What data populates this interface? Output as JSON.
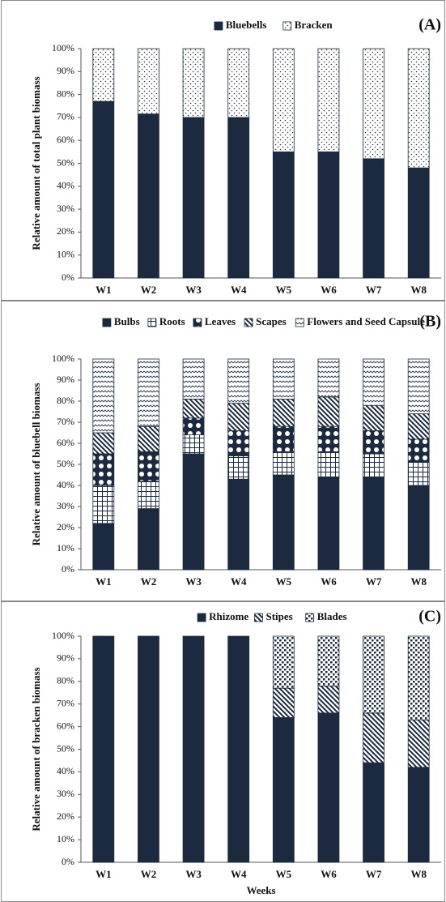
{
  "chart_data": [
    {
      "type": "stacked_bar",
      "panel_label": "(A)",
      "ylabel": "Relative amount of total plant biomass",
      "categories": [
        "W1",
        "W2",
        "W3",
        "W4",
        "W5",
        "W6",
        "W7",
        "W8"
      ],
      "series": [
        {
          "name": "Bluebells",
          "color": "#1b2a3e",
          "pattern": "solid",
          "values": [
            77,
            71.5,
            70,
            70,
            55,
            55,
            52,
            48
          ]
        },
        {
          "name": "Bracken",
          "color": "#ffffff",
          "pattern": "dots",
          "values": [
            23,
            28.5,
            30,
            30,
            45,
            45,
            48,
            52
          ]
        }
      ],
      "ylim": [
        0,
        100
      ],
      "yticks": [
        {
          "value": 0,
          "label": "0%"
        },
        {
          "value": 10,
          "label": "10%"
        },
        {
          "value": 20,
          "label": "20%"
        },
        {
          "value": 30,
          "label": "30%"
        },
        {
          "value": 40,
          "label": "40%"
        },
        {
          "value": 50,
          "label": "50%"
        },
        {
          "value": 60,
          "label": "60%"
        },
        {
          "value": 70,
          "label": "70%"
        },
        {
          "value": 80,
          "label": "80%"
        },
        {
          "value": 90,
          "label": "90%"
        },
        {
          "value": 100,
          "label": "100%"
        }
      ]
    },
    {
      "type": "stacked_bar",
      "panel_label": "(B)",
      "ylabel": "Relative amount of  bluebell biomass",
      "categories": [
        "W1",
        "W2",
        "W3",
        "W4",
        "W5",
        "W6",
        "W7",
        "W8"
      ],
      "series": [
        {
          "name": "Bulbs",
          "color": "#1b2a3e",
          "pattern": "solid",
          "values": [
            22,
            29,
            55,
            43,
            45,
            44,
            44,
            40
          ]
        },
        {
          "name": "Roots",
          "color": "#ffffff",
          "pattern": "grid",
          "values": [
            18,
            13,
            9,
            11,
            11,
            12,
            11,
            11
          ]
        },
        {
          "name": "Leaves",
          "color": "#ffffff",
          "pattern": "circles",
          "values": [
            15,
            14,
            8,
            12,
            12,
            12,
            11,
            11
          ]
        },
        {
          "name": "Scapes",
          "color": "#ffffff",
          "pattern": "diagonal",
          "values": [
            10,
            12,
            9,
            13,
            13,
            14,
            12,
            12
          ]
        },
        {
          "name": "Flowers and Seed Capsule",
          "color": "#ffffff",
          "pattern": "zigzag",
          "values": [
            35,
            32,
            19,
            21,
            19,
            18,
            22,
            26
          ]
        }
      ],
      "ylim": [
        0,
        100
      ],
      "yticks": [
        {
          "value": 0,
          "label": "0%"
        },
        {
          "value": 10,
          "label": "10%"
        },
        {
          "value": 20,
          "label": "20%"
        },
        {
          "value": 30,
          "label": "30%"
        },
        {
          "value": 40,
          "label": "40%"
        },
        {
          "value": 50,
          "label": "50%"
        },
        {
          "value": 60,
          "label": "60%"
        },
        {
          "value": 70,
          "label": "70%"
        },
        {
          "value": 80,
          "label": "80%"
        },
        {
          "value": 90,
          "label": "90%"
        },
        {
          "value": 100,
          "label": "100%"
        }
      ]
    },
    {
      "type": "stacked_bar",
      "panel_label": "(C)",
      "ylabel": "Relative amount  of bracken biomass",
      "xlabel": "Weeks",
      "categories": [
        "W1",
        "W2",
        "W3",
        "W4",
        "W5",
        "W6",
        "W7",
        "W8"
      ],
      "series": [
        {
          "name": "Rhizome",
          "color": "#1b2a3e",
          "pattern": "solid",
          "values": [
            100,
            100,
            100,
            100,
            64,
            66,
            44,
            42
          ]
        },
        {
          "name": "Stipes",
          "color": "#ffffff",
          "pattern": "diagonal",
          "values": [
            0,
            0,
            0,
            0,
            13,
            12,
            22,
            21
          ]
        },
        {
          "name": "Blades",
          "color": "#ffffff",
          "pattern": "checker",
          "values": [
            0,
            0,
            0,
            0,
            23,
            22,
            34,
            37
          ]
        }
      ],
      "ylim": [
        0,
        100
      ],
      "yticks": [
        {
          "value": 0,
          "label": "0%"
        },
        {
          "value": 10,
          "label": "10%"
        },
        {
          "value": 20,
          "label": "20%"
        },
        {
          "value": 30,
          "label": "30%"
        },
        {
          "value": 40,
          "label": "40%"
        },
        {
          "value": 50,
          "label": "50%"
        },
        {
          "value": 60,
          "label": "60%"
        },
        {
          "value": 70,
          "label": "70%"
        },
        {
          "value": 80,
          "label": "80%"
        },
        {
          "value": 90,
          "label": "90%"
        },
        {
          "value": 100,
          "label": "100%"
        }
      ]
    }
  ]
}
